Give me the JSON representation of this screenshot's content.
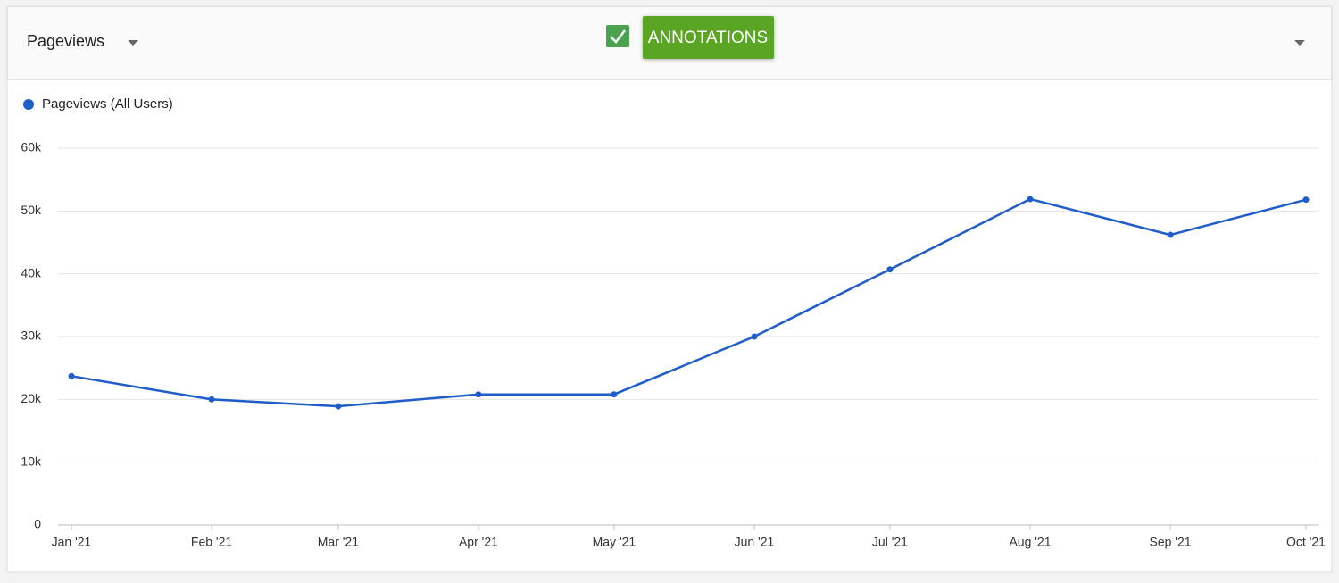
{
  "metric_selector": "Pageviews",
  "annotations_button": "ANNOTATIONS",
  "chart_data": {
    "type": "line",
    "x": [
      "2021-01",
      "2021-02",
      "2021-03",
      "2021-04",
      "2021-05",
      "2021-06",
      "2021-07",
      "2021-08",
      "2021-09",
      "2021-10"
    ],
    "xticks": [
      {
        "value": "2021-01",
        "label": "Jan '21"
      },
      {
        "value": "2021-02",
        "label": "Feb '21"
      },
      {
        "value": "2021-03",
        "label": "Mar '21"
      },
      {
        "value": "2021-04",
        "label": "Apr '21"
      },
      {
        "value": "2021-05",
        "label": "May '21"
      },
      {
        "value": "2021-06",
        "label": "Jun '21"
      },
      {
        "value": "2021-07",
        "label": "Jul '21"
      },
      {
        "value": "2021-08",
        "label": "Aug '21"
      },
      {
        "value": "2021-09",
        "label": "Sep '21"
      },
      {
        "value": "2021-10",
        "label": "Oct '21"
      }
    ],
    "series": [
      {
        "name": "Pageviews (All Users)",
        "color": "#1f5ec9",
        "values": [
          23700,
          20000,
          18900,
          20800,
          20800,
          30000,
          40700,
          51900,
          46200,
          51800
        ]
      }
    ],
    "ylim": [
      0,
      60000
    ],
    "yticks": [
      0,
      {
        "value": 10000,
        "label": "10k"
      },
      {
        "value": 20000,
        "label": "20k"
      },
      {
        "value": 30000,
        "label": "30k"
      },
      {
        "value": 40000,
        "label": "40k"
      },
      {
        "value": 50000,
        "label": "50k"
      },
      {
        "value": 60000,
        "label": "60k"
      }
    ],
    "grid": true
  }
}
